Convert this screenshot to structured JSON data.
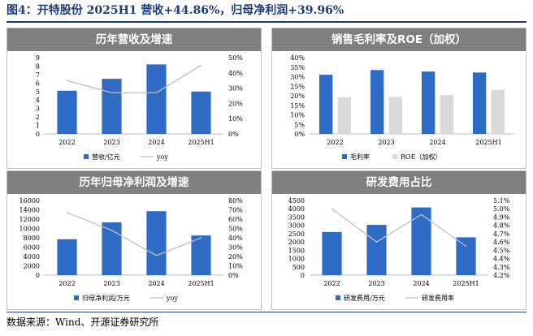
{
  "figure_title": "图4：开特股份 2025H1 营收+44.86%，归母净利润+39.96%",
  "source_note": "数据来源：Wind、开源证券研究所",
  "colors": {
    "bar_blue": "#2e6bc4",
    "bar_gray": "#d9d9d9",
    "line_gray": "#bfbfbf",
    "header_gray": "#7f7f7f"
  },
  "chart_data": [
    {
      "title": "历年营收及增速",
      "type": "bar",
      "categories": [
        "2022",
        "2023",
        "2024",
        "2025H1"
      ],
      "series": [
        {
          "name": "营收/亿元",
          "type": "bar",
          "axis": "left",
          "values": [
            5.1,
            6.5,
            8.2,
            5.0
          ]
        },
        {
          "name": "yoy",
          "type": "line",
          "axis": "right",
          "values": [
            35,
            27,
            27,
            45
          ]
        }
      ],
      "ylim_left": [
        0,
        9
      ],
      "yticks_left": [
        "0",
        "1",
        "2",
        "3",
        "4",
        "5",
        "6",
        "7",
        "8",
        "9"
      ],
      "ylim_right": [
        0,
        50
      ],
      "yticks_right": [
        "0%",
        "10%",
        "20%",
        "30%",
        "40%",
        "50%"
      ],
      "legend": [
        "营收/亿元",
        "yoy"
      ]
    },
    {
      "title": "销售毛利率及ROE（加权）",
      "type": "bar",
      "categories": [
        "2022",
        "2023",
        "2024",
        "2025H1"
      ],
      "series": [
        {
          "name": "毛利率",
          "type": "bar",
          "axis": "left",
          "values": [
            31,
            33.5,
            32.7,
            32.2
          ]
        },
        {
          "name": "ROE（加权）",
          "type": "bar",
          "axis": "left",
          "values": [
            19.3,
            19.5,
            20.4,
            23.1
          ]
        }
      ],
      "ylim_left": [
        0,
        40
      ],
      "yticks_left": [
        "0%",
        "5%",
        "10%",
        "15%",
        "20%",
        "25%",
        "30%",
        "35%",
        "40%"
      ],
      "legend": [
        "毛利率",
        "ROE（加权）"
      ]
    },
    {
      "title": "历年归母净利润及增速",
      "type": "bar",
      "categories": [
        "2022",
        "2023",
        "2024",
        "2025H1"
      ],
      "series": [
        {
          "name": "归母净利润/万元",
          "type": "bar",
          "axis": "left",
          "values": [
            7700,
            11300,
            13700,
            8500
          ]
        },
        {
          "name": "yoy",
          "type": "line",
          "axis": "right",
          "values": [
            67,
            48,
            21,
            40
          ]
        }
      ],
      "ylim_left": [
        0,
        16000
      ],
      "yticks_left": [
        "0",
        "2000",
        "4000",
        "6000",
        "8000",
        "10000",
        "12000",
        "14000",
        "16000"
      ],
      "ylim_right": [
        0,
        80
      ],
      "yticks_right": [
        "0%",
        "10%",
        "20%",
        "30%",
        "40%",
        "50%",
        "60%",
        "70%",
        "80%"
      ],
      "legend": [
        "归母净利润/万元",
        "yoy"
      ]
    },
    {
      "title": "研发费用占比",
      "type": "bar",
      "categories": [
        "2022",
        "2023",
        "2024",
        "2025H1"
      ],
      "series": [
        {
          "name": "研发费用/万元",
          "type": "bar",
          "axis": "left",
          "values": [
            2600,
            3030,
            4080,
            2280
          ]
        },
        {
          "name": "研发费用率",
          "type": "line",
          "axis": "right",
          "values": [
            5.0,
            4.6,
            4.93,
            4.55
          ]
        }
      ],
      "ylim_left": [
        0,
        4500
      ],
      "yticks_left": [
        "0",
        "500",
        "1000",
        "1500",
        "2000",
        "2500",
        "3000",
        "3500",
        "4000",
        "4500"
      ],
      "ylim_right": [
        4.2,
        5.1
      ],
      "yticks_right": [
        "4.2%",
        "4.3%",
        "4.4%",
        "4.5%",
        "4.6%",
        "4.7%",
        "4.8%",
        "4.9%",
        "5.0%",
        "5.1%"
      ],
      "legend": [
        "研发费用/万元",
        "研发费用率"
      ]
    }
  ]
}
